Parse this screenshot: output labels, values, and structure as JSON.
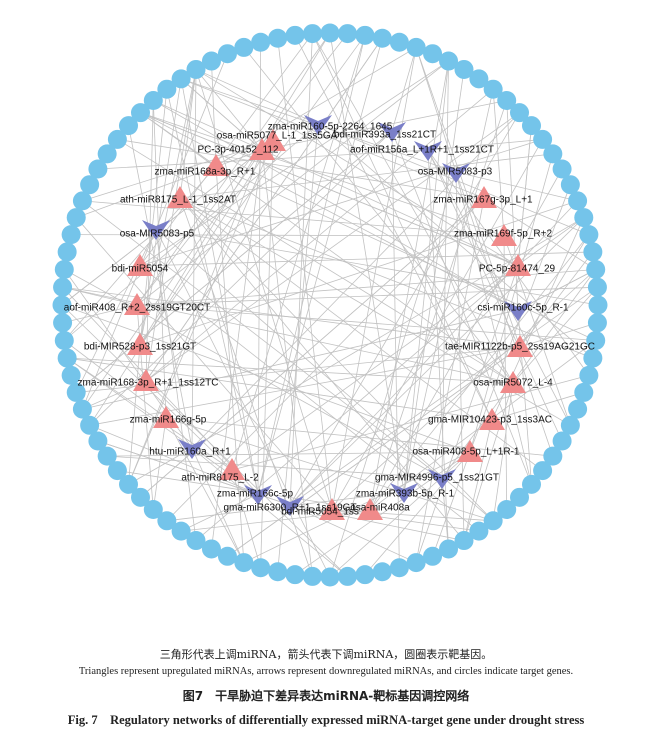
{
  "nodes": [
    {
      "label": "zma-miR160-5p-2264_1645"
    },
    {
      "label": "osa-miR5077_L-1_1ss5GA"
    },
    {
      "label": "bdi-miR393a_1ss21CT"
    },
    {
      "label": "PC-3p-40152_112"
    },
    {
      "label": "aof-miR156a_L+1R+1_1ss21CT"
    },
    {
      "label": "zma-miR168a-3p_R+1"
    },
    {
      "label": "osa-MIR5083-p3"
    },
    {
      "label": "ath-miR8175_L-1_1ss2AT"
    },
    {
      "label": "zma-miR167g-3p_L+1"
    },
    {
      "label": "osa-MIR5083-p5"
    },
    {
      "label": "zma-miR169f-5p_R+2"
    },
    {
      "label": "bdi-miR5054"
    },
    {
      "label": "PC-5p-81474_29"
    },
    {
      "label": "aof-miR408_R+2_2ss19GT20CT"
    },
    {
      "label": "csi-miR160c-5p_R-1"
    },
    {
      "label": "bdi-MIR528-p3_1ss21GT"
    },
    {
      "label": "tae-MIR1122b-p5_2ss19AG21GC"
    },
    {
      "label": "zma-miR168-3p_R+1_1ss12TC"
    },
    {
      "label": "osa-miR5072_L-4"
    },
    {
      "label": "zma-miR166g-5p"
    },
    {
      "label": "gma-MIR10423-p3_1ss3AC"
    },
    {
      "label": "htu-miR160a_R+1"
    },
    {
      "label": "osa-miR408-5p_L+1R-1"
    },
    {
      "label": "ath-miR8175_L-2"
    },
    {
      "label": "gma-MIR4996-p5_1ss21GT"
    },
    {
      "label": "zma-miR166c-5p"
    },
    {
      "label": "zma-miR393b-5p_R-1"
    },
    {
      "label": "gma-miR6300_R+1_1ss19GT"
    },
    {
      "label": "bdi-miR5054_1ss"
    },
    {
      "label": "osa-miR408a"
    }
  ],
  "caption": {
    "note_zh": "三角形代表上调miRNA，箭头代表下调miRNA，圆圈表示靶基因。",
    "note_en": "Triangles represent upregulated miRNAs, arrows represent downregulated miRNAs, and circles indicate target genes.",
    "title_zh": "图7　干旱胁迫下差异表达miRNA-靶标基因调控网络",
    "title_en": "Fig. 7　Regulatory networks of differentially expressed miRNA-target gene under drought stress"
  }
}
